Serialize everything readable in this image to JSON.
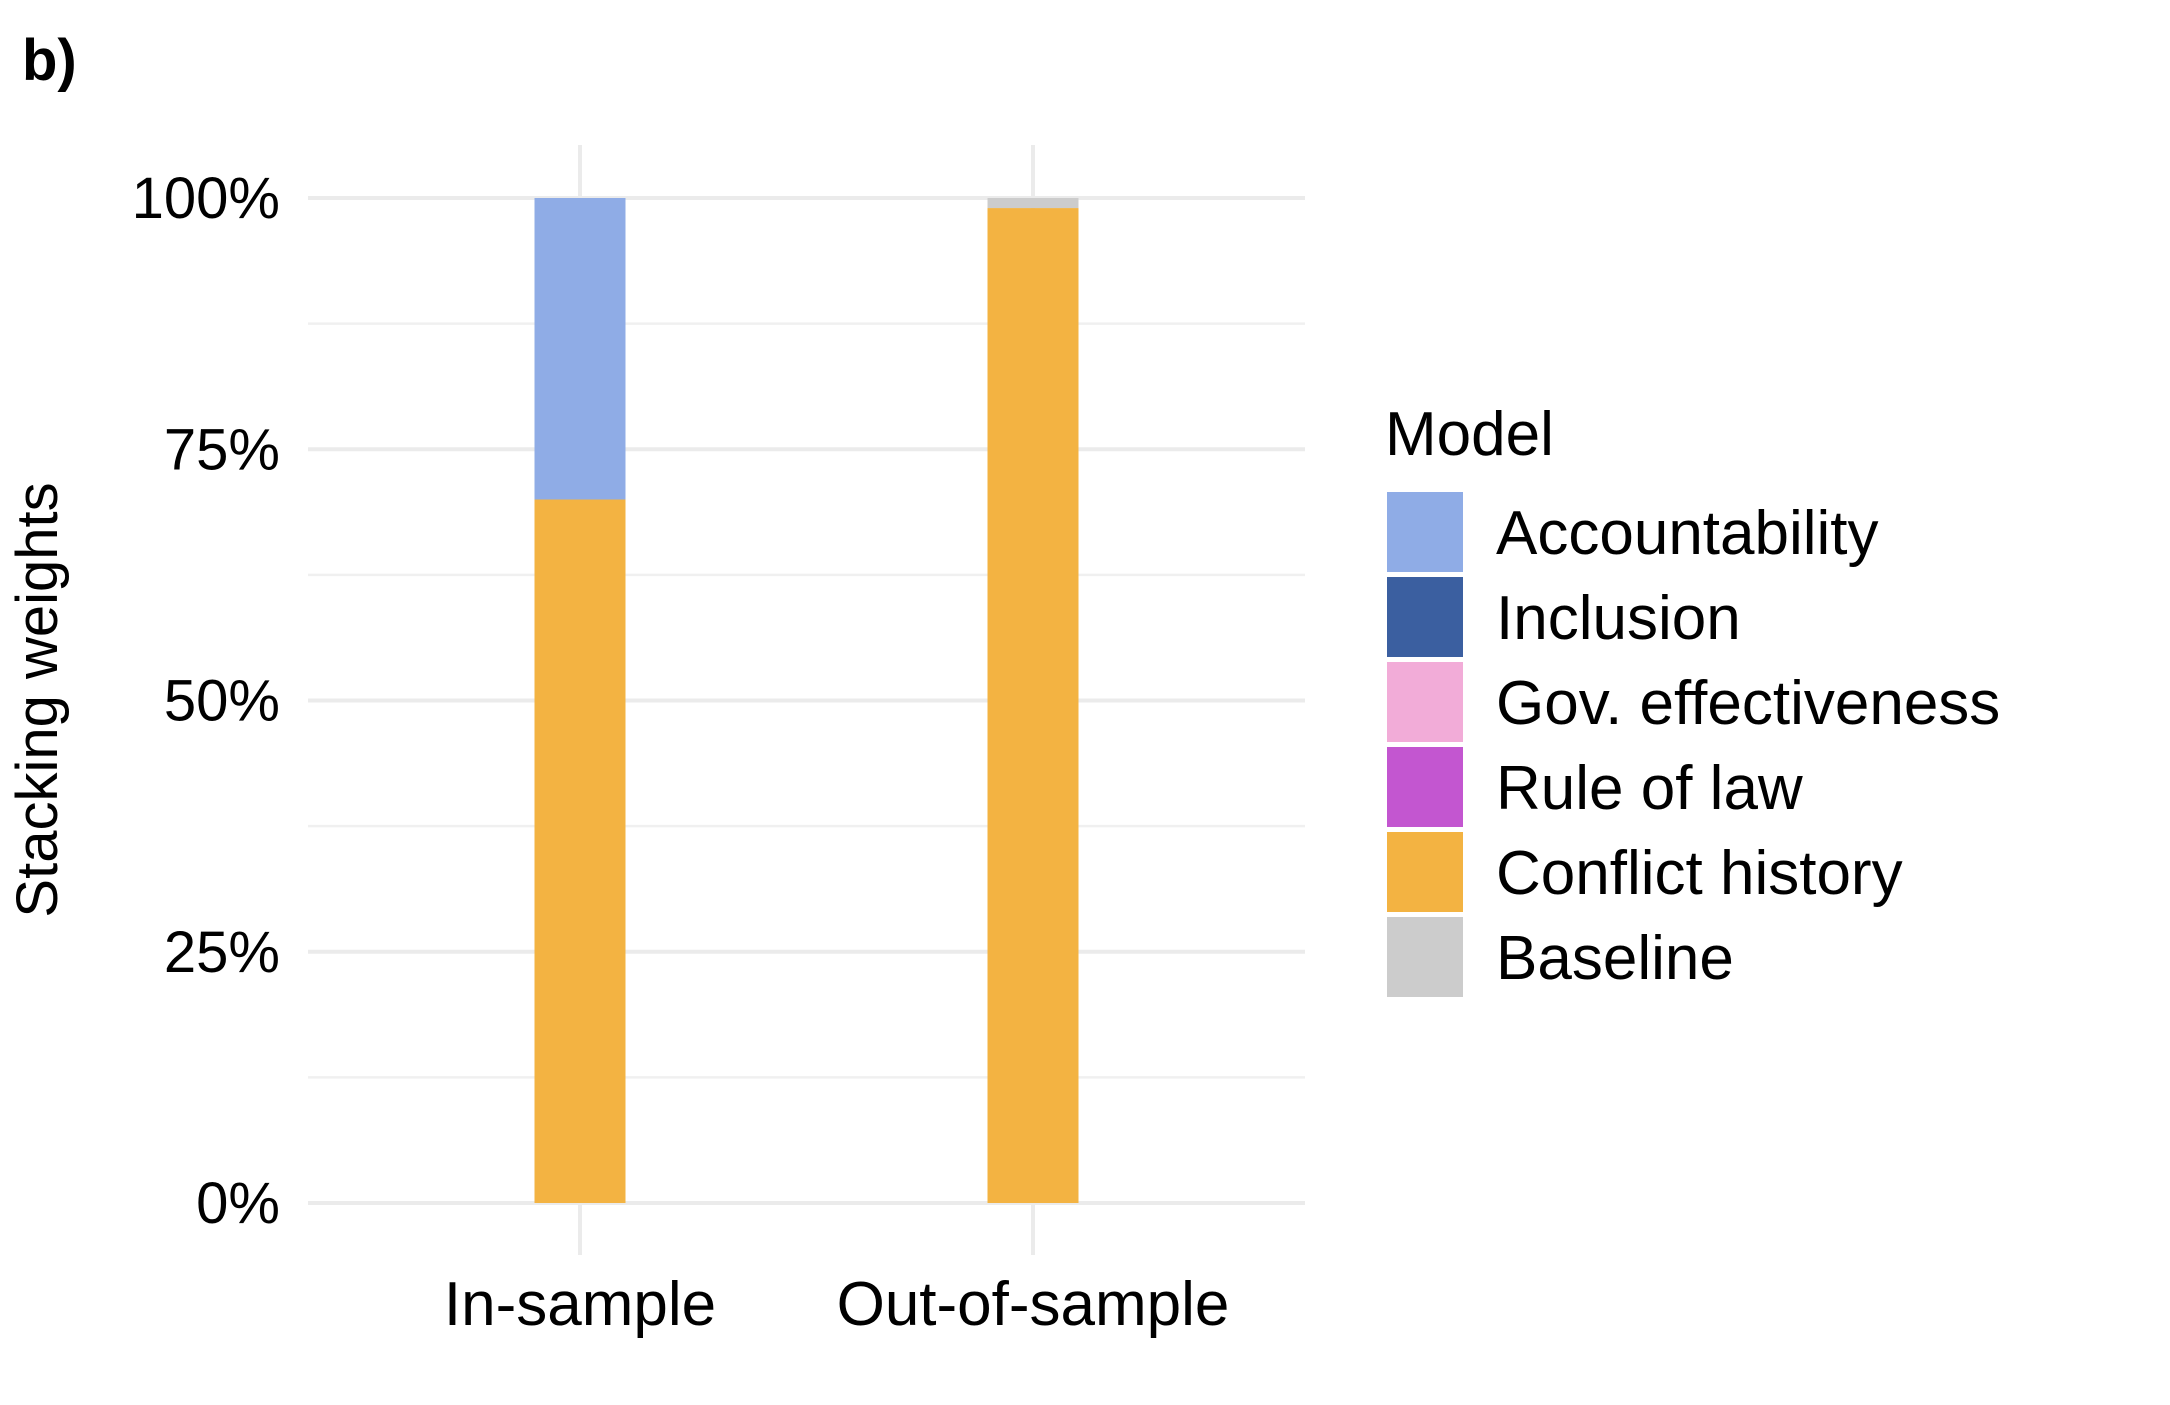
{
  "panel_label": "b)",
  "chart_data": {
    "type": "bar",
    "stacked": true,
    "categories": [
      "In-sample",
      "Out-of-sample"
    ],
    "series": [
      {
        "name": "Baseline",
        "values": [
          0.0,
          0.01
        ],
        "color": "#CCCCCC"
      },
      {
        "name": "Accountability",
        "values": [
          0.3,
          0.0
        ],
        "color": "#8FACE6"
      },
      {
        "name": "Inclusion",
        "values": [
          0.0,
          0.0
        ],
        "color": "#3B5FA0"
      },
      {
        "name": "Gov. effectiveness",
        "values": [
          0.0,
          0.0
        ],
        "color": "#F2ACD8"
      },
      {
        "name": "Rule of law",
        "values": [
          0.0,
          0.0
        ],
        "color": "#C356D0"
      },
      {
        "name": "Conflict history",
        "values": [
          0.7,
          0.99
        ],
        "color": "#F3B342"
      }
    ],
    "stack_order_bottom_to_top": [
      "Conflict history",
      "Rule of law",
      "Gov. effectiveness",
      "Inclusion",
      "Accountability",
      "Baseline"
    ],
    "xlabel": "",
    "ylabel": "Stacking weights",
    "ylim": [
      0,
      1
    ],
    "yticks": [
      0,
      0.25,
      0.5,
      0.75,
      1
    ],
    "ytick_labels": [
      "0%",
      "25%",
      "50%",
      "75%",
      "100%"
    ],
    "grid": true,
    "legend": {
      "title": "Model",
      "position": "right",
      "entries": [
        "Accountability",
        "Inclusion",
        "Gov. effectiveness",
        "Rule of law",
        "Conflict history",
        "Baseline"
      ]
    }
  }
}
